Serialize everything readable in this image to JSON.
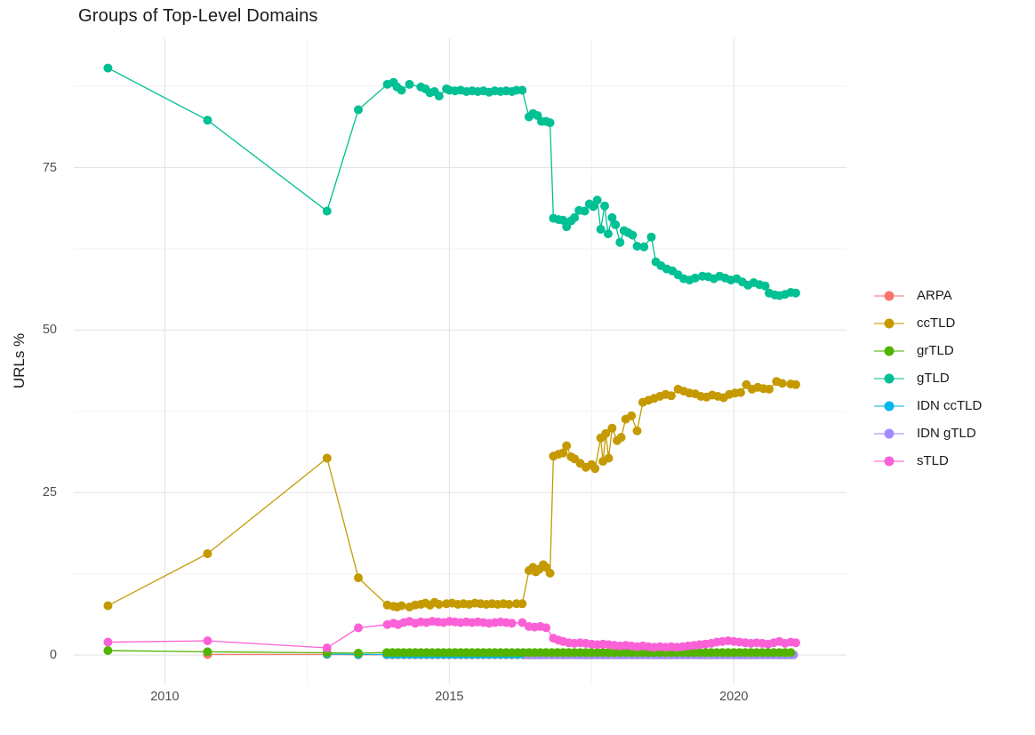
{
  "title": "Groups of Top-Level Domains",
  "axes": {
    "y_label": "URLs %",
    "x_tick_labels": [
      "2010",
      "2015",
      "2020"
    ],
    "y_tick_labels": [
      "0",
      "25",
      "50",
      "75"
    ]
  },
  "colors": {
    "background": "#FFFFFF",
    "grid_major": "#E4E4E4",
    "grid_minor": "#F2F2F2",
    "tick_text": "#4E4E4E",
    "title_text": "#1A1A1A"
  },
  "chart_data": {
    "type": "line",
    "title": "Groups of Top-Level Domains",
    "xlabel": "",
    "ylabel": "URLs %",
    "xlim": [
      2008.4,
      2021.98
    ],
    "ylim": [
      -4.5,
      94.9
    ],
    "x_major_ticks": [
      2010,
      2015,
      2020
    ],
    "x_minor_ticks": [
      2012.5,
      2017.5
    ],
    "y_major_ticks": [
      0,
      25,
      50,
      75
    ],
    "y_minor_ticks": [
      12.5,
      37.5,
      62.5,
      87.5
    ],
    "legend_position": "right",
    "grid": true,
    "series": [
      {
        "name": "ARPA",
        "color": "#F8766D",
        "z": 1,
        "points": [
          [
            2010.75,
            0.1
          ],
          [
            2012.85,
            0.1
          ],
          [
            2013.4,
            0.05
          ]
        ],
        "constant": {
          "from": 2013.9,
          "to": 2021.09,
          "step": 0.1,
          "value": 0.05
        }
      },
      {
        "name": "ccTLD",
        "color": "#C49A00",
        "z": 5,
        "points": [
          [
            2009.0,
            7.6
          ],
          [
            2010.75,
            15.6
          ],
          [
            2012.85,
            30.3
          ],
          [
            2013.4,
            11.9
          ],
          [
            2013.91,
            7.7
          ],
          [
            2014.02,
            7.5
          ],
          [
            2014.08,
            7.4
          ],
          [
            2014.16,
            7.6
          ],
          [
            2014.3,
            7.4
          ],
          [
            2014.4,
            7.7
          ],
          [
            2014.5,
            7.8
          ],
          [
            2014.58,
            8.0
          ],
          [
            2014.66,
            7.7
          ],
          [
            2014.74,
            8.1
          ],
          [
            2014.82,
            7.8
          ],
          [
            2014.95,
            7.9
          ],
          [
            2015.05,
            8.0
          ],
          [
            2015.15,
            7.8
          ],
          [
            2015.25,
            7.9
          ],
          [
            2015.35,
            7.8
          ],
          [
            2015.45,
            8.0
          ],
          [
            2015.55,
            7.9
          ],
          [
            2015.65,
            7.8
          ],
          [
            2015.75,
            7.9
          ],
          [
            2015.85,
            7.8
          ],
          [
            2015.95,
            7.9
          ],
          [
            2016.05,
            7.8
          ],
          [
            2016.18,
            7.9
          ],
          [
            2016.28,
            7.9
          ],
          [
            2016.4,
            13.0
          ],
          [
            2016.47,
            13.5
          ],
          [
            2016.52,
            12.8
          ],
          [
            2016.58,
            13.2
          ],
          [
            2016.65,
            13.9
          ],
          [
            2016.7,
            13.5
          ],
          [
            2016.77,
            12.6
          ],
          [
            2016.83,
            30.6
          ],
          [
            2016.92,
            30.9
          ],
          [
            2017.0,
            31.1
          ],
          [
            2017.06,
            32.2
          ],
          [
            2017.14,
            30.5
          ],
          [
            2017.2,
            30.2
          ],
          [
            2017.3,
            29.5
          ],
          [
            2017.4,
            28.9
          ],
          [
            2017.5,
            29.3
          ],
          [
            2017.56,
            28.7
          ],
          [
            2017.66,
            33.4
          ],
          [
            2017.7,
            29.8
          ],
          [
            2017.75,
            34.1
          ],
          [
            2017.8,
            30.3
          ],
          [
            2017.86,
            34.9
          ],
          [
            2017.95,
            33.0
          ],
          [
            2018.02,
            33.5
          ],
          [
            2018.1,
            36.3
          ],
          [
            2018.2,
            36.8
          ],
          [
            2018.3,
            34.5
          ],
          [
            2018.4,
            38.9
          ],
          [
            2018.5,
            39.2
          ],
          [
            2018.6,
            39.5
          ],
          [
            2018.7,
            39.8
          ],
          [
            2018.8,
            40.1
          ],
          [
            2018.9,
            39.9
          ],
          [
            2019.02,
            40.9
          ],
          [
            2019.12,
            40.6
          ],
          [
            2019.22,
            40.3
          ],
          [
            2019.32,
            40.2
          ],
          [
            2019.42,
            39.8
          ],
          [
            2019.52,
            39.7
          ],
          [
            2019.62,
            40.0
          ],
          [
            2019.72,
            39.8
          ],
          [
            2019.82,
            39.6
          ],
          [
            2019.92,
            40.1
          ],
          [
            2020.02,
            40.3
          ],
          [
            2020.12,
            40.4
          ],
          [
            2020.22,
            41.6
          ],
          [
            2020.32,
            40.9
          ],
          [
            2020.42,
            41.2
          ],
          [
            2020.52,
            41.0
          ],
          [
            2020.62,
            40.9
          ],
          [
            2020.75,
            42.1
          ],
          [
            2020.85,
            41.8
          ],
          [
            2021.0,
            41.7
          ],
          [
            2021.09,
            41.6
          ]
        ]
      },
      {
        "name": "grTLD",
        "color": "#53B400",
        "z": 4,
        "points": [
          [
            2009.0,
            0.7
          ],
          [
            2010.75,
            0.5
          ],
          [
            2012.85,
            0.35
          ],
          [
            2013.4,
            0.3
          ]
        ],
        "constant": {
          "from": 2013.9,
          "to": 2021.09,
          "step": 0.1,
          "value": 0.4
        }
      },
      {
        "name": "gTLD",
        "color": "#00C094",
        "z": 6,
        "points": [
          [
            2009.0,
            90.3
          ],
          [
            2010.75,
            82.3
          ],
          [
            2012.85,
            68.3
          ],
          [
            2013.4,
            83.9
          ],
          [
            2013.91,
            87.8
          ],
          [
            2014.02,
            88.1
          ],
          [
            2014.08,
            87.4
          ],
          [
            2014.16,
            86.9
          ],
          [
            2014.3,
            87.8
          ],
          [
            2014.5,
            87.4
          ],
          [
            2014.58,
            87.1
          ],
          [
            2014.66,
            86.5
          ],
          [
            2014.74,
            86.7
          ],
          [
            2014.82,
            86.0
          ],
          [
            2014.95,
            87.1
          ],
          [
            2015.0,
            86.9
          ],
          [
            2015.1,
            86.8
          ],
          [
            2015.2,
            86.9
          ],
          [
            2015.3,
            86.7
          ],
          [
            2015.4,
            86.8
          ],
          [
            2015.5,
            86.7
          ],
          [
            2015.6,
            86.8
          ],
          [
            2015.7,
            86.6
          ],
          [
            2015.8,
            86.8
          ],
          [
            2015.9,
            86.7
          ],
          [
            2016.0,
            86.8
          ],
          [
            2016.1,
            86.7
          ],
          [
            2016.18,
            86.9
          ],
          [
            2016.28,
            86.9
          ],
          [
            2016.4,
            82.8
          ],
          [
            2016.47,
            83.3
          ],
          [
            2016.55,
            83.0
          ],
          [
            2016.62,
            82.1
          ],
          [
            2016.7,
            82.1
          ],
          [
            2016.77,
            81.9
          ],
          [
            2016.83,
            67.2
          ],
          [
            2016.92,
            67.0
          ],
          [
            2017.0,
            66.9
          ],
          [
            2017.06,
            65.9
          ],
          [
            2017.14,
            66.8
          ],
          [
            2017.2,
            67.3
          ],
          [
            2017.28,
            68.4
          ],
          [
            2017.38,
            68.3
          ],
          [
            2017.46,
            69.4
          ],
          [
            2017.53,
            69.0
          ],
          [
            2017.6,
            70.0
          ],
          [
            2017.66,
            65.5
          ],
          [
            2017.73,
            69.1
          ],
          [
            2017.79,
            64.8
          ],
          [
            2017.86,
            67.3
          ],
          [
            2017.92,
            66.2
          ],
          [
            2018.0,
            63.5
          ],
          [
            2018.07,
            65.3
          ],
          [
            2018.14,
            65.0
          ],
          [
            2018.22,
            64.6
          ],
          [
            2018.3,
            62.9
          ],
          [
            2018.42,
            62.8
          ],
          [
            2018.55,
            64.3
          ],
          [
            2018.63,
            60.5
          ],
          [
            2018.72,
            59.9
          ],
          [
            2018.82,
            59.4
          ],
          [
            2018.92,
            59.1
          ],
          [
            2019.02,
            58.5
          ],
          [
            2019.12,
            57.9
          ],
          [
            2019.22,
            57.7
          ],
          [
            2019.32,
            58.0
          ],
          [
            2019.45,
            58.3
          ],
          [
            2019.55,
            58.2
          ],
          [
            2019.65,
            57.9
          ],
          [
            2019.75,
            58.3
          ],
          [
            2019.85,
            58.0
          ],
          [
            2019.95,
            57.7
          ],
          [
            2020.05,
            57.9
          ],
          [
            2020.15,
            57.4
          ],
          [
            2020.25,
            56.9
          ],
          [
            2020.35,
            57.3
          ],
          [
            2020.45,
            57.0
          ],
          [
            2020.55,
            56.8
          ],
          [
            2020.62,
            55.7
          ],
          [
            2020.72,
            55.4
          ],
          [
            2020.8,
            55.3
          ],
          [
            2020.9,
            55.5
          ],
          [
            2021.0,
            55.8
          ],
          [
            2021.09,
            55.7
          ]
        ]
      },
      {
        "name": "IDN ccTLD",
        "color": "#00B6EB",
        "z": 2,
        "points": [
          [
            2012.85,
            0.15
          ],
          [
            2013.4,
            0.1
          ]
        ],
        "constant": {
          "from": 2013.9,
          "to": 2021.09,
          "step": 0.1,
          "value": 0.1
        }
      },
      {
        "name": "IDN gTLD",
        "color": "#A58AFF",
        "z": 3,
        "points": [],
        "constant": {
          "from": 2016.35,
          "to": 2021.09,
          "step": 0.1,
          "value": 0.05
        }
      },
      {
        "name": "sTLD",
        "color": "#FB61D7",
        "z": 7,
        "points": [
          [
            2009.0,
            2.0
          ],
          [
            2010.75,
            2.2
          ],
          [
            2012.85,
            1.1
          ],
          [
            2013.4,
            4.2
          ],
          [
            2013.91,
            4.7
          ],
          [
            2014.02,
            4.9
          ],
          [
            2014.1,
            4.7
          ],
          [
            2014.2,
            5.0
          ],
          [
            2014.3,
            5.2
          ],
          [
            2014.4,
            4.9
          ],
          [
            2014.5,
            5.1
          ],
          [
            2014.6,
            5.0
          ],
          [
            2014.7,
            5.2
          ],
          [
            2014.8,
            5.1
          ],
          [
            2014.9,
            5.0
          ],
          [
            2015.0,
            5.2
          ],
          [
            2015.1,
            5.1
          ],
          [
            2015.2,
            5.0
          ],
          [
            2015.3,
            5.1
          ],
          [
            2015.4,
            5.0
          ],
          [
            2015.5,
            5.1
          ],
          [
            2015.6,
            5.0
          ],
          [
            2015.7,
            4.9
          ],
          [
            2015.8,
            5.0
          ],
          [
            2015.9,
            5.1
          ],
          [
            2016.0,
            5.0
          ],
          [
            2016.1,
            4.9
          ],
          [
            2016.28,
            5.0
          ],
          [
            2016.4,
            4.4
          ],
          [
            2016.5,
            4.3
          ],
          [
            2016.6,
            4.4
          ],
          [
            2016.7,
            4.2
          ],
          [
            2016.83,
            2.6
          ],
          [
            2016.92,
            2.3
          ],
          [
            2017.0,
            2.1
          ],
          [
            2017.1,
            1.9
          ],
          [
            2017.2,
            1.8
          ],
          [
            2017.3,
            1.9
          ],
          [
            2017.4,
            1.8
          ],
          [
            2017.5,
            1.7
          ],
          [
            2017.6,
            1.6
          ],
          [
            2017.7,
            1.7
          ],
          [
            2017.8,
            1.6
          ],
          [
            2017.9,
            1.5
          ],
          [
            2018.0,
            1.4
          ],
          [
            2018.1,
            1.5
          ],
          [
            2018.2,
            1.4
          ],
          [
            2018.3,
            1.3
          ],
          [
            2018.4,
            1.4
          ],
          [
            2018.5,
            1.3
          ],
          [
            2018.6,
            1.2
          ],
          [
            2018.7,
            1.3
          ],
          [
            2018.8,
            1.2
          ],
          [
            2018.9,
            1.3
          ],
          [
            2019.0,
            1.2
          ],
          [
            2019.1,
            1.3
          ],
          [
            2019.2,
            1.4
          ],
          [
            2019.3,
            1.5
          ],
          [
            2019.4,
            1.6
          ],
          [
            2019.5,
            1.7
          ],
          [
            2019.6,
            1.8
          ],
          [
            2019.7,
            2.0
          ],
          [
            2019.8,
            2.1
          ],
          [
            2019.9,
            2.2
          ],
          [
            2020.0,
            2.1
          ],
          [
            2020.1,
            2.0
          ],
          [
            2020.2,
            1.9
          ],
          [
            2020.3,
            1.8
          ],
          [
            2020.4,
            1.9
          ],
          [
            2020.5,
            1.8
          ],
          [
            2020.6,
            1.7
          ],
          [
            2020.7,
            1.9
          ],
          [
            2020.8,
            2.1
          ],
          [
            2020.9,
            1.8
          ],
          [
            2021.0,
            2.0
          ],
          [
            2021.09,
            1.9
          ]
        ]
      }
    ]
  }
}
